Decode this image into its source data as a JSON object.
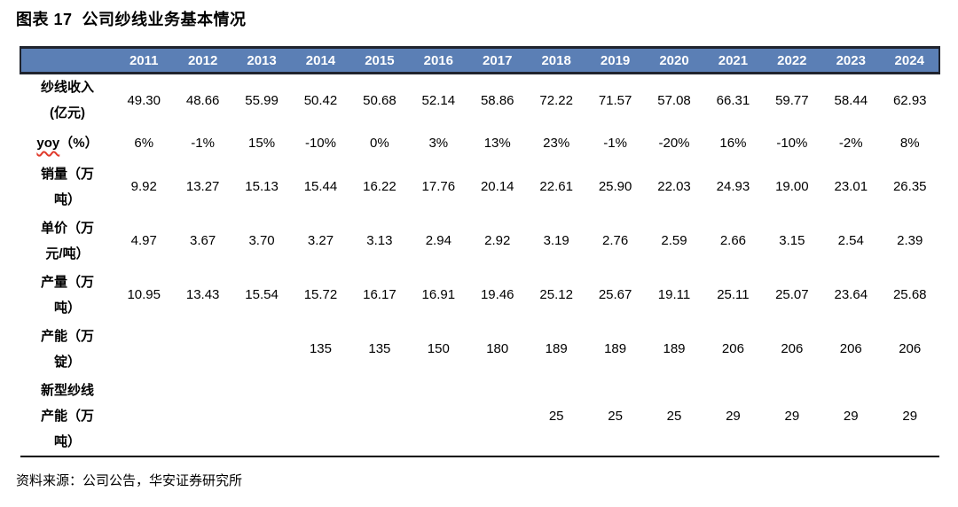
{
  "page": {
    "title": "图表 17  公司纱线业务基本情况",
    "source_note": "资料来源：公司公告，华安证券研究所"
  },
  "colors": {
    "header_bg": "#5B7FB5",
    "header_text": "#FFFFFF",
    "header_border": "#20242E",
    "spellcheck_underline_red": "#E03A2B"
  },
  "table": {
    "corner_label": "",
    "header_years": [
      "2011",
      "2012",
      "2013",
      "2014",
      "2015",
      "2016",
      "2017",
      "2018",
      "2019",
      "2020",
      "2021",
      "2022",
      "2023",
      "2024"
    ],
    "rows": [
      {
        "id": "yarn-revenue",
        "label": "纱线收入(亿元)",
        "label_lines": [
          "纱线收入",
          "(亿元)"
        ],
        "values": [
          "49.30",
          "48.66",
          "55.99",
          "50.42",
          "50.68",
          "52.14",
          "58.86",
          "72.22",
          "71.57",
          "57.08",
          "66.31",
          "59.77",
          "58.44",
          "62.93"
        ]
      },
      {
        "id": "yoy",
        "label": "yoy（%）",
        "label_lines": [
          "yoy（%）"
        ],
        "underline_word": "yoy",
        "values": [
          "6%",
          "-1%",
          "15%",
          "-10%",
          "0%",
          "3%",
          "13%",
          "23%",
          "-1%",
          "-20%",
          "16%",
          "-10%",
          "-2%",
          "8%"
        ]
      },
      {
        "id": "sales-volume",
        "label": "销量（万吨）",
        "label_lines": [
          "销量（万",
          "吨）"
        ],
        "values": [
          "9.92",
          "13.27",
          "15.13",
          "15.44",
          "16.22",
          "17.76",
          "20.14",
          "22.61",
          "25.90",
          "22.03",
          "24.93",
          "19.00",
          "23.01",
          "26.35"
        ]
      },
      {
        "id": "unit-price",
        "label": "单价（万元/吨）",
        "label_lines": [
          "单价（万",
          "元/吨）"
        ],
        "values": [
          "4.97",
          "3.67",
          "3.70",
          "3.27",
          "3.13",
          "2.94",
          "2.92",
          "3.19",
          "2.76",
          "2.59",
          "2.66",
          "3.15",
          "2.54",
          "2.39"
        ]
      },
      {
        "id": "production",
        "label": "产量（万吨）",
        "label_lines": [
          "产量（万",
          "吨）"
        ],
        "values": [
          "10.95",
          "13.43",
          "15.54",
          "15.72",
          "16.17",
          "16.91",
          "19.46",
          "25.12",
          "25.67",
          "19.11",
          "25.11",
          "25.07",
          "23.64",
          "25.68"
        ]
      },
      {
        "id": "capacity",
        "label": "产能（万锭）",
        "label_lines": [
          "产能（万",
          "锭）"
        ],
        "values": [
          "",
          "",
          "",
          "135",
          "135",
          "150",
          "180",
          "189",
          "189",
          "189",
          "206",
          "206",
          "206",
          "206"
        ]
      },
      {
        "id": "new-yarn-capacity",
        "label": "新型纱线产能（万吨）",
        "label_lines": [
          "新型纱线",
          "产能（万",
          "吨）"
        ],
        "values": [
          "",
          "",
          "",
          "",
          "",
          "",
          "",
          "25",
          "25",
          "25",
          "29",
          "29",
          "29",
          "29"
        ]
      }
    ]
  }
}
